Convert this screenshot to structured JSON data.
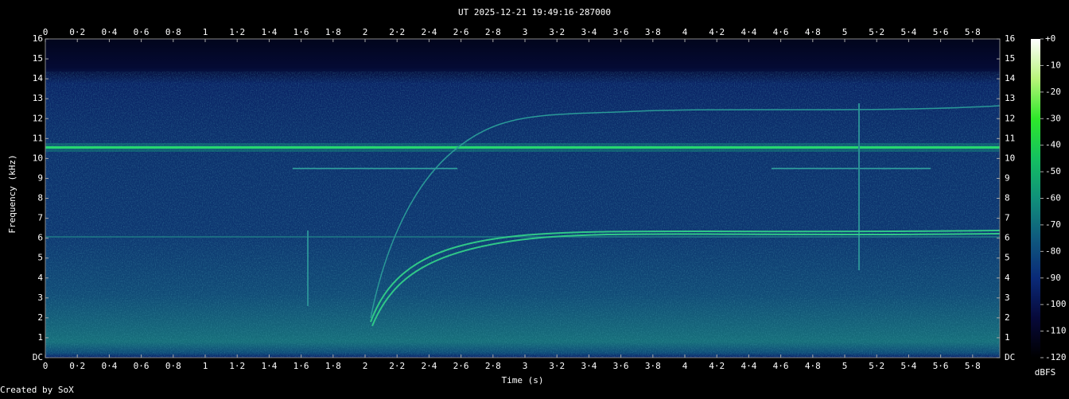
{
  "chart_data": {
    "type": "spectrogram",
    "title": "UT 2025-12-21 19:49:16·287000",
    "x_label": "Time (s)",
    "y_label": "Frequency (kHz)",
    "colorbar_label": "dBFS",
    "footer": "Created by SoX",
    "xlim": [
      0,
      5.97
    ],
    "xticks": [
      0,
      {
        "value": 0.2,
        "label": "0·2"
      },
      {
        "value": 0.4,
        "label": "0·4"
      },
      {
        "value": 0.6,
        "label": "0·6"
      },
      {
        "value": 0.8,
        "label": "0·8"
      },
      1,
      {
        "value": 1.2,
        "label": "1·2"
      },
      {
        "value": 1.4,
        "label": "1·4"
      },
      {
        "value": 1.6,
        "label": "1·6"
      },
      {
        "value": 1.8,
        "label": "1·8"
      },
      2,
      {
        "value": 2.2,
        "label": "2·2"
      },
      {
        "value": 2.4,
        "label": "2·4"
      },
      {
        "value": 2.6,
        "label": "2·6"
      },
      {
        "value": 2.8,
        "label": "2·8"
      },
      3,
      {
        "value": 3.2,
        "label": "3·2"
      },
      {
        "value": 3.4,
        "label": "3·4"
      },
      {
        "value": 3.6,
        "label": "3·6"
      },
      {
        "value": 3.8,
        "label": "3·8"
      },
      4,
      {
        "value": 4.2,
        "label": "4·2"
      },
      {
        "value": 4.4,
        "label": "4·4"
      },
      {
        "value": 4.6,
        "label": "4·6"
      },
      {
        "value": 4.8,
        "label": "4·8"
      },
      5,
      {
        "value": 5.2,
        "label": "5·2"
      },
      {
        "value": 5.4,
        "label": "5·4"
      },
      {
        "value": 5.6,
        "label": "5·6"
      },
      {
        "value": 5.8,
        "label": "5·8"
      }
    ],
    "ylim": [
      0,
      16
    ],
    "yticks": [
      {
        "value": 0,
        "label": "DC"
      },
      1,
      2,
      3,
      4,
      5,
      6,
      7,
      8,
      9,
      10,
      11,
      12,
      13,
      14,
      15,
      16
    ],
    "clim": [
      -120,
      0
    ],
    "cticks": [
      {
        "value": 0,
        "label": "+0"
      },
      -10,
      -20,
      -30,
      -40,
      -50,
      -60,
      -70,
      -80,
      -90,
      -100,
      -110,
      -120
    ],
    "colormap": [
      "#000000",
      "#07093a",
      "#0a2a78",
      "#0f5a7e",
      "#10907a",
      "#14c060",
      "#2ee82a",
      "#b8f47a",
      "#ffffff"
    ]
  }
}
